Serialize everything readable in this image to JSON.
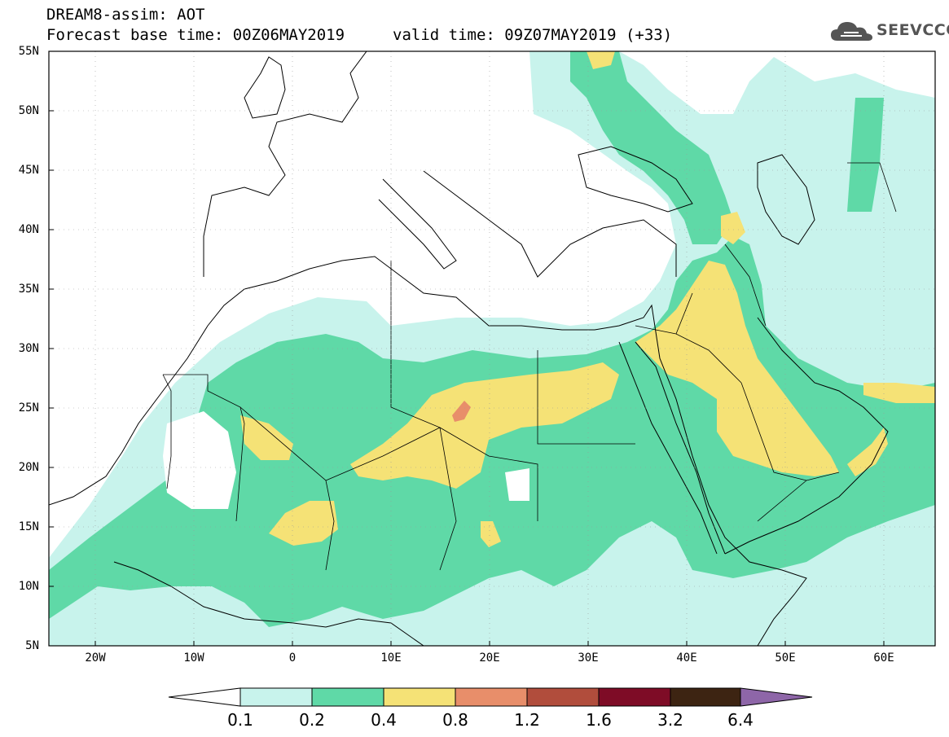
{
  "header": {
    "title": "DREAM8-assim: AOT",
    "base_time": "Forecast base time: 00Z06MAY2019",
    "valid_time": "valid time: 09Z07MAY2019 (+33)",
    "logo_text": "SEEVCCC"
  },
  "axes": {
    "lat_labels": [
      "55N",
      "50N",
      "45N",
      "40N",
      "35N",
      "30N",
      "25N",
      "20N",
      "15N",
      "10N",
      "5N"
    ],
    "lon_labels": [
      "20W",
      "10W",
      "0",
      "10E",
      "20E",
      "30E",
      "40E",
      "50E",
      "60E"
    ]
  },
  "colorbar": {
    "labels": [
      "0.1",
      "0.2",
      "0.4",
      "0.8",
      "1.2",
      "1.6",
      "3.2",
      "6.4"
    ],
    "colors": [
      "#c8f3ec",
      "#5fd9a7",
      "#f5e276",
      "#e88e6a",
      "#b14d3c",
      "#7e0c26",
      "#3d2412",
      "#8e66a8"
    ],
    "below_color": "#ffffff"
  },
  "field_colors": {
    "c01": "#c8f3ec",
    "c02": "#5fd9a7",
    "c04": "#f5e276",
    "c08": "#e88e6a"
  }
}
